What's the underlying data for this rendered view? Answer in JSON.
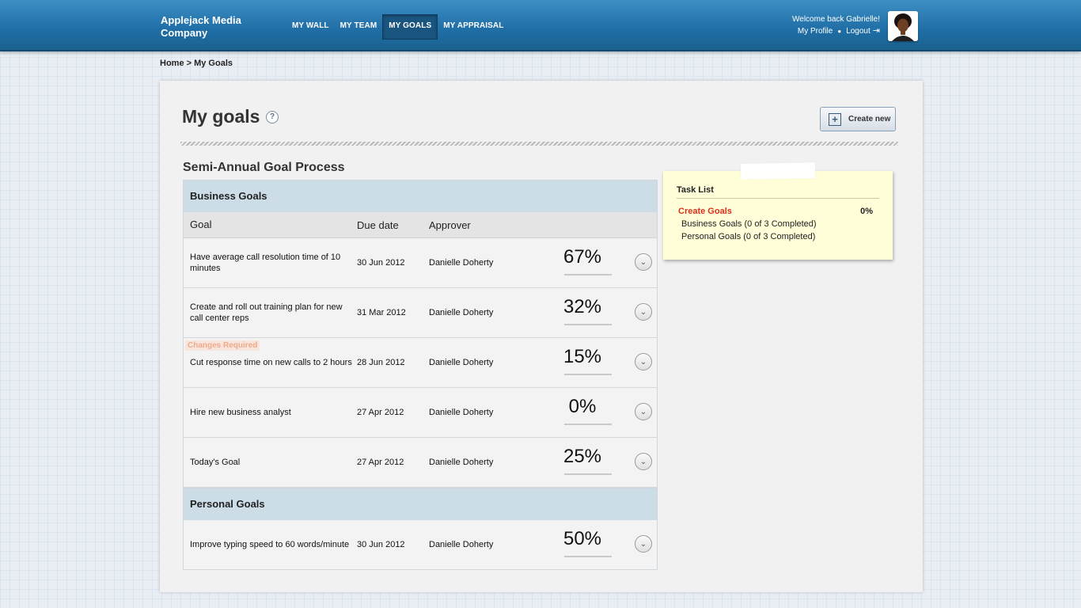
{
  "header": {
    "brand": "Applejack Media Company",
    "nav": [
      {
        "label": "MY WALL",
        "active": false
      },
      {
        "label": "MY TEAM",
        "active": false
      },
      {
        "label": "MY GOALS",
        "active": true
      },
      {
        "label": "MY APPRAISAL",
        "active": false
      }
    ],
    "welcome": "Welcome back Gabrielle!",
    "profile_link": "My Profile",
    "logout_link": "Logout"
  },
  "breadcrumb": "Home > My Goals",
  "page": {
    "title": "My goals",
    "help_glyph": "?",
    "create_label": "Create new",
    "section_title": "Semi-Annual Goal Process"
  },
  "table": {
    "columns": {
      "goal": "Goal",
      "due": "Due date",
      "approver": "Approver"
    },
    "groups": [
      {
        "title": "Business Goals",
        "rows": [
          {
            "goal": "Have average call resolution time of 10 minutes",
            "due": "30 Jun 2012",
            "approver": "Danielle Doherty",
            "progress": "67%",
            "fraction": 0.67,
            "badge": ""
          },
          {
            "goal": "Create and roll out training plan for new call center reps",
            "due": "31 Mar 2012",
            "approver": "Danielle Doherty",
            "progress": "32%",
            "fraction": 0.32,
            "badge": ""
          },
          {
            "goal": "Cut response time on new calls to 2 hours",
            "due": "28 Jun 2012",
            "approver": "Danielle Doherty",
            "progress": "15%",
            "fraction": 0.15,
            "badge": "Changes Required"
          },
          {
            "goal": "Hire new business analyst",
            "due": "27 Apr 2012",
            "approver": "Danielle Doherty",
            "progress": "0%",
            "fraction": 0.0,
            "badge": ""
          },
          {
            "goal": "Today's Goal",
            "due": "27 Apr 2012",
            "approver": "Danielle Doherty",
            "progress": "25%",
            "fraction": 0.25,
            "badge": ""
          }
        ]
      },
      {
        "title": "Personal Goals",
        "rows": [
          {
            "goal": "Improve typing speed to 60 words/minute",
            "due": "30 Jun 2012",
            "approver": "Danielle Doherty",
            "progress": "50%",
            "fraction": 0.5,
            "badge": ""
          }
        ]
      }
    ]
  },
  "task_list": {
    "title": "Task List",
    "main_label": "Create Goals",
    "main_value": "0%",
    "items": [
      "Business Goals  (0 of 3 Completed)",
      "Personal Goals  (0 of 3 Completed)"
    ]
  },
  "colors": {
    "header": "#1f6ea6",
    "accent_bar": "#2f7fc0",
    "alert_red": "#d9321c",
    "note_yellow": "#fffed8"
  }
}
